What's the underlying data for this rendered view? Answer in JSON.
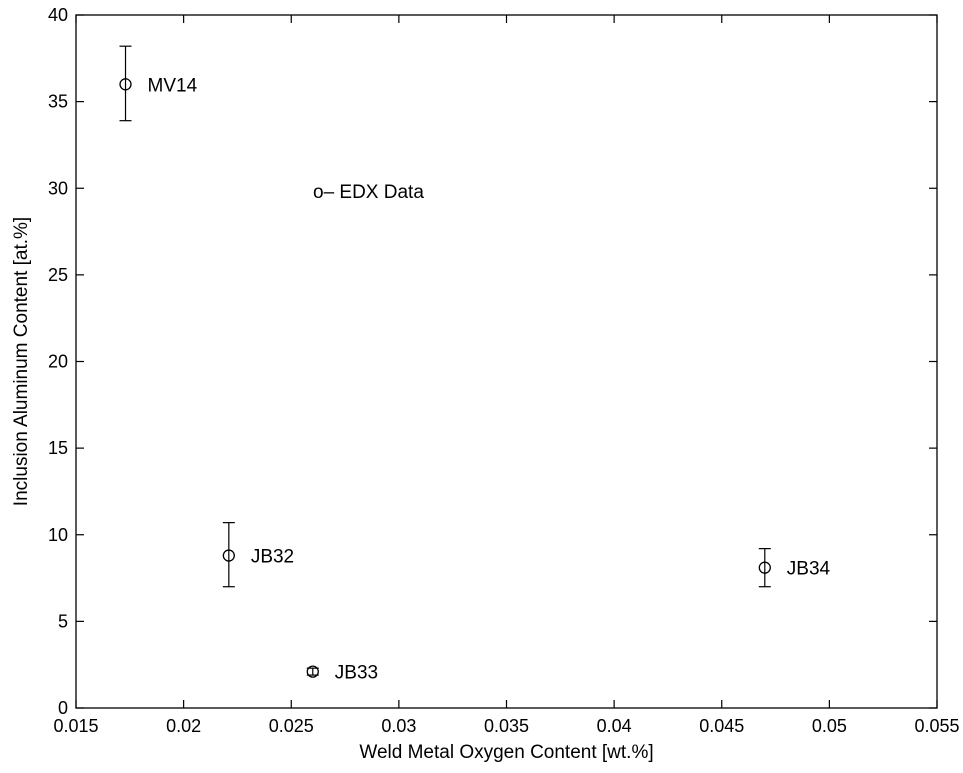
{
  "chart_data": {
    "type": "scatter",
    "title": "",
    "xlabel": "Weld Metal Oxygen Content [wt.%]",
    "ylabel": "Inclusion Aluminum Content [at.%]",
    "xlim": [
      0.015,
      0.055
    ],
    "ylim": [
      0,
      40
    ],
    "x_ticks": [
      0.015,
      0.02,
      0.025,
      0.03,
      0.035,
      0.04,
      0.045,
      0.05,
      0.055
    ],
    "x_tick_labels": [
      "0.015",
      "0.02",
      "0.025",
      "0.03",
      "0.035",
      "0.04",
      "0.045",
      "0.05",
      "0.055"
    ],
    "y_ticks": [
      0,
      5,
      10,
      15,
      20,
      25,
      30,
      35,
      40
    ],
    "y_tick_labels": [
      "0",
      "5",
      "10",
      "15",
      "20",
      "25",
      "30",
      "35",
      "40"
    ],
    "grid": false,
    "legend": {
      "position": "top-center",
      "entries": [
        {
          "label": "o– EDX Data",
          "marker": "circle"
        }
      ]
    },
    "points": [
      {
        "label": "MV14",
        "x": 0.0173,
        "y": 36.0,
        "err_low": 33.9,
        "err_high": 38.2
      },
      {
        "label": "JB32",
        "x": 0.0221,
        "y": 8.8,
        "err_low": 7.0,
        "err_high": 10.7
      },
      {
        "label": "JB33",
        "x": 0.026,
        "y": 2.1,
        "err_low": 1.9,
        "err_high": 2.3
      },
      {
        "label": "JB34",
        "x": 0.047,
        "y": 8.1,
        "err_low": 7.0,
        "err_high": 9.2
      }
    ],
    "colors": {
      "axis": "#000000",
      "marker": "#000000",
      "background": "#ffffff"
    }
  }
}
